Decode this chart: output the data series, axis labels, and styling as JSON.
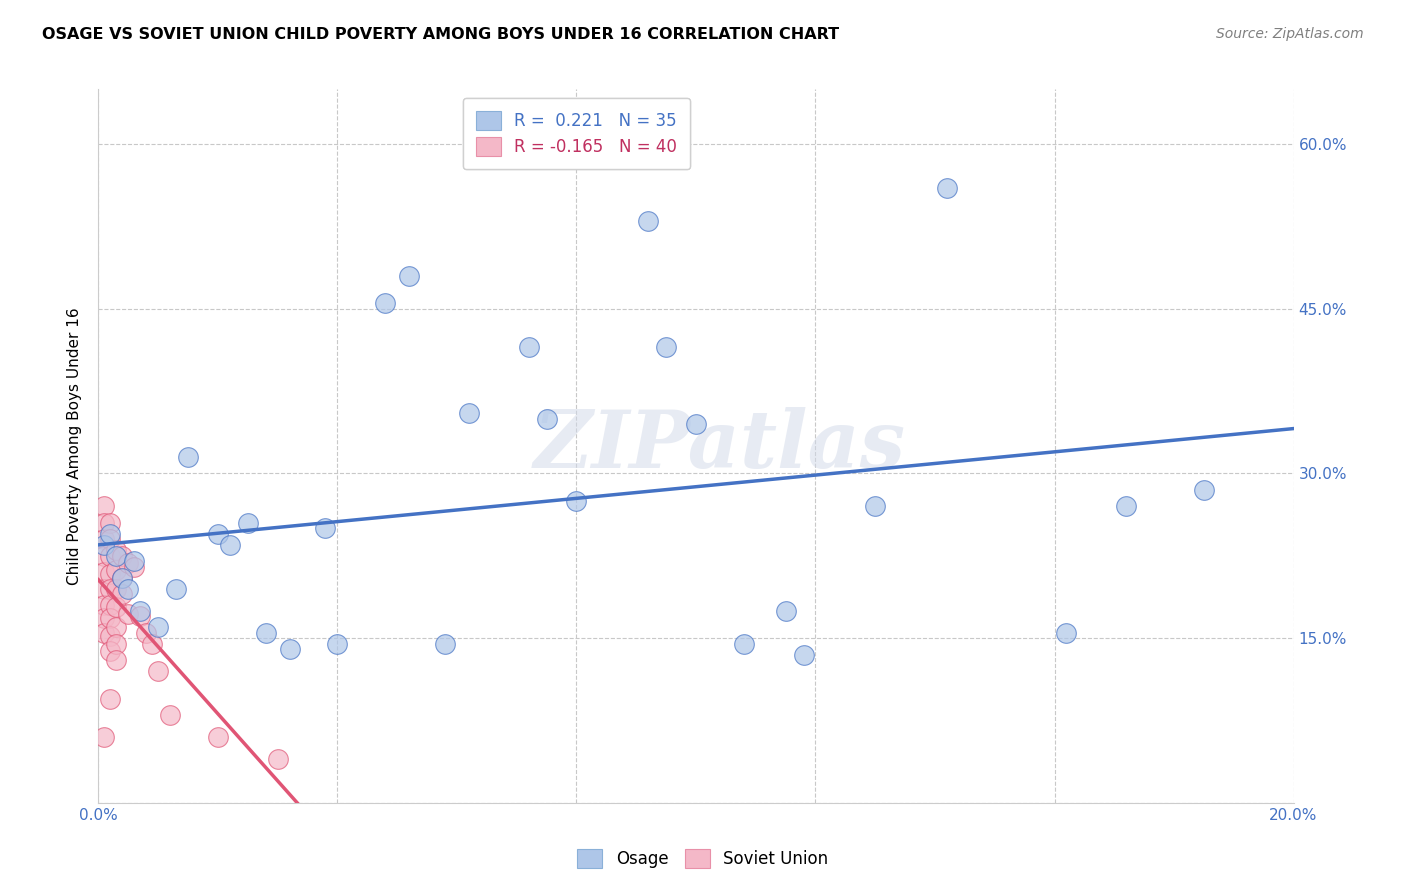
{
  "title": "OSAGE VS SOVIET UNION CHILD POVERTY AMONG BOYS UNDER 16 CORRELATION CHART",
  "source": "Source: ZipAtlas.com",
  "ylabel": "Child Poverty Among Boys Under 16",
  "xlim": [
    0.0,
    0.2
  ],
  "ylim": [
    0.0,
    0.65
  ],
  "xticks": [
    0.0,
    0.04,
    0.08,
    0.12,
    0.16,
    0.2
  ],
  "xticklabels": [
    "0.0%",
    "",
    "",
    "",
    "",
    "20.0%"
  ],
  "yticks": [
    0.0,
    0.15,
    0.3,
    0.45,
    0.6
  ],
  "right_yticklabels": [
    "",
    "15.0%",
    "30.0%",
    "45.0%",
    "60.0%"
  ],
  "osage_R": 0.221,
  "osage_N": 35,
  "soviet_R": -0.165,
  "soviet_N": 40,
  "osage_color": "#aec6e8",
  "soviet_color": "#f4b8c8",
  "osage_line_color": "#4472c4",
  "soviet_line_color": "#e05575",
  "background_color": "#ffffff",
  "grid_color": "#c8c8c8",
  "watermark": "ZIPatlas",
  "osage_x": [
    0.001,
    0.002,
    0.003,
    0.004,
    0.005,
    0.006,
    0.007,
    0.01,
    0.013,
    0.015,
    0.02,
    0.022,
    0.025,
    0.028,
    0.032,
    0.038,
    0.04,
    0.048,
    0.052,
    0.058,
    0.062,
    0.072,
    0.075,
    0.08,
    0.092,
    0.095,
    0.1,
    0.108,
    0.115,
    0.118,
    0.13,
    0.142,
    0.162,
    0.172,
    0.185
  ],
  "osage_y": [
    0.235,
    0.245,
    0.225,
    0.205,
    0.195,
    0.22,
    0.175,
    0.16,
    0.195,
    0.315,
    0.245,
    0.235,
    0.255,
    0.155,
    0.14,
    0.25,
    0.145,
    0.455,
    0.48,
    0.145,
    0.355,
    0.415,
    0.35,
    0.275,
    0.53,
    0.415,
    0.345,
    0.145,
    0.175,
    0.135,
    0.27,
    0.56,
    0.155,
    0.27,
    0.285
  ],
  "soviet_x": [
    0.001,
    0.001,
    0.001,
    0.001,
    0.001,
    0.001,
    0.001,
    0.001,
    0.001,
    0.001,
    0.002,
    0.002,
    0.002,
    0.002,
    0.002,
    0.002,
    0.002,
    0.002,
    0.002,
    0.002,
    0.003,
    0.003,
    0.003,
    0.003,
    0.003,
    0.003,
    0.003,
    0.004,
    0.004,
    0.004,
    0.005,
    0.005,
    0.006,
    0.007,
    0.008,
    0.009,
    0.01,
    0.012,
    0.02,
    0.03
  ],
  "soviet_y": [
    0.27,
    0.255,
    0.24,
    0.225,
    0.21,
    0.195,
    0.18,
    0.168,
    0.155,
    0.06,
    0.255,
    0.24,
    0.225,
    0.208,
    0.195,
    0.18,
    0.168,
    0.152,
    0.138,
    0.095,
    0.23,
    0.212,
    0.195,
    0.178,
    0.16,
    0.145,
    0.13,
    0.225,
    0.205,
    0.19,
    0.218,
    0.172,
    0.215,
    0.17,
    0.155,
    0.145,
    0.12,
    0.08,
    0.06,
    0.04
  ]
}
